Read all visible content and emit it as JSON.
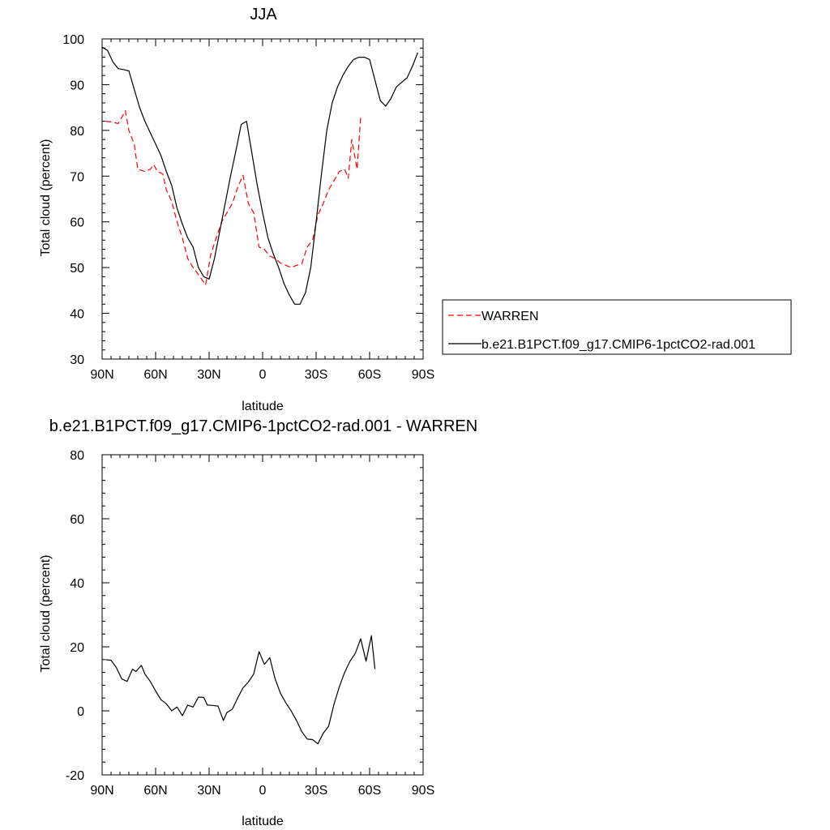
{
  "chart_data": [
    {
      "type": "line",
      "title": "JJA",
      "xlabel": "latitude",
      "ylabel": "Total cloud (percent)",
      "xlim": [
        90,
        -90
      ],
      "ylim": [
        30,
        100
      ],
      "x_ticks": [
        90,
        60,
        30,
        0,
        -30,
        -60,
        -90
      ],
      "x_tick_labels": [
        "90N",
        "60N",
        "30N",
        "0",
        "30S",
        "60S",
        "90S"
      ],
      "y_ticks": [
        30,
        40,
        50,
        60,
        70,
        80,
        90,
        100
      ],
      "y_tick_labels": [
        "30",
        "40",
        "50",
        "60",
        "70",
        "80",
        "90",
        "100"
      ],
      "legend": {
        "placement": "outside-right"
      },
      "series": [
        {
          "name": "WARREN",
          "color": "#ff0000",
          "dash": "dashed",
          "points": [
            [
              88,
              82
            ],
            [
              84,
              81.8
            ],
            [
              81,
              81.5
            ],
            [
              78,
              83.5
            ],
            [
              77,
              84.3
            ],
            [
              75,
              80
            ],
            [
              72,
              77
            ],
            [
              70,
              71.5
            ],
            [
              66,
              71
            ],
            [
              63,
              71.5
            ],
            [
              61,
              72.5
            ],
            [
              59,
              71
            ],
            [
              56,
              70.5
            ],
            [
              54,
              67
            ],
            [
              51,
              64.5
            ],
            [
              48,
              60
            ],
            [
              45,
              56.5
            ],
            [
              42,
              52
            ],
            [
              39,
              50
            ],
            [
              36,
              48.5
            ],
            [
              32,
              46.2
            ],
            [
              29,
              53
            ],
            [
              26,
              56.5
            ],
            [
              23,
              60
            ],
            [
              20,
              62
            ],
            [
              17,
              64
            ],
            [
              14,
              67.5
            ],
            [
              11,
              70.2
            ],
            [
              8,
              64
            ],
            [
              5,
              62
            ],
            [
              2,
              54.5
            ],
            [
              -1,
              54
            ],
            [
              -4,
              52.5
            ],
            [
              -7,
              52
            ],
            [
              -10,
              51
            ],
            [
              -13,
              50.5
            ],
            [
              -16,
              50
            ],
            [
              -19,
              50.5
            ],
            [
              -22,
              50.8
            ],
            [
              -25,
              54.5
            ],
            [
              -28,
              56
            ],
            [
              -31,
              61.5
            ],
            [
              -34,
              64
            ],
            [
              -37,
              67
            ],
            [
              -40,
              69
            ],
            [
              -43,
              71
            ],
            [
              -46,
              71.5
            ],
            [
              -48,
              69.5
            ],
            [
              -50,
              78
            ],
            [
              -53,
              71.5
            ],
            [
              -55,
              83
            ]
          ]
        },
        {
          "name": "b.e21.B1PCT.f09_g17.CMIP6-1pctCO2-rad.001",
          "color": "#000000",
          "dash": "solid",
          "points": [
            [
              90,
              98.2
            ],
            [
              87,
              97.5
            ],
            [
              84,
              95
            ],
            [
              81,
              93.5
            ],
            [
              78,
              93.3
            ],
            [
              75,
              93
            ],
            [
              72,
              89
            ],
            [
              69,
              85
            ],
            [
              66,
              82
            ],
            [
              63,
              79.5
            ],
            [
              60,
              77
            ],
            [
              57,
              74.5
            ],
            [
              54,
              71
            ],
            [
              51,
              68
            ],
            [
              48,
              63
            ],
            [
              45,
              59.5
            ],
            [
              42,
              56.5
            ],
            [
              39,
              54.5
            ],
            [
              36,
              50
            ],
            [
              33,
              48
            ],
            [
              30,
              47.5
            ],
            [
              27,
              52
            ],
            [
              24,
              58
            ],
            [
              21,
              64
            ],
            [
              18,
              70
            ],
            [
              15,
              75.5
            ],
            [
              12,
              81.3
            ],
            [
              9,
              82
            ],
            [
              6,
              75
            ],
            [
              3,
              68
            ],
            [
              0,
              62
            ],
            [
              -3,
              56.5
            ],
            [
              -6,
              53
            ],
            [
              -9,
              50
            ],
            [
              -12,
              46.5
            ],
            [
              -15,
              44
            ],
            [
              -18,
              42
            ],
            [
              -21,
              42
            ],
            [
              -24,
              44.5
            ],
            [
              -27,
              50
            ],
            [
              -30,
              60
            ],
            [
              -33,
              70.5
            ],
            [
              -36,
              80
            ],
            [
              -39,
              86
            ],
            [
              -42,
              89.5
            ],
            [
              -45,
              92
            ],
            [
              -48,
              94
            ],
            [
              -51,
              95.5
            ],
            [
              -54,
              96
            ],
            [
              -57,
              96
            ],
            [
              -60,
              95.5
            ],
            [
              -63,
              91
            ],
            [
              -66,
              86.5
            ],
            [
              -69,
              85.3
            ],
            [
              -72,
              87
            ],
            [
              -75,
              89.5
            ],
            [
              -78,
              90.5
            ],
            [
              -81,
              91.5
            ],
            [
              -84,
              94
            ],
            [
              -87,
              97
            ]
          ]
        }
      ]
    },
    {
      "type": "line",
      "title": "b.e21.B1PCT.f09_g17.CMIP6-1pctCO2-rad.001 - WARREN",
      "xlabel": "latitude",
      "ylabel": "Total cloud (percent)",
      "xlim": [
        90,
        -90
      ],
      "ylim": [
        -20,
        80
      ],
      "x_ticks": [
        90,
        60,
        30,
        0,
        -30,
        -60,
        -90
      ],
      "x_tick_labels": [
        "90N",
        "60N",
        "30N",
        "0",
        "30S",
        "60S",
        "90S"
      ],
      "y_ticks": [
        -20,
        0,
        20,
        40,
        60,
        80
      ],
      "y_tick_labels": [
        "-20",
        "0",
        "20",
        "40",
        "60",
        "80"
      ],
      "series": [
        {
          "color": "#000000",
          "dash": "solid",
          "points": [
            [
              88,
              16
            ],
            [
              85,
              15.8
            ],
            [
              82,
              13.5
            ],
            [
              79,
              10
            ],
            [
              76,
              9.2
            ],
            [
              73,
              13
            ],
            [
              71,
              12.3
            ],
            [
              68,
              14.2
            ],
            [
              66,
              11.5
            ],
            [
              63,
              9.2
            ],
            [
              60,
              6.2
            ],
            [
              57,
              3.5
            ],
            [
              54,
              2.2
            ],
            [
              51,
              0
            ],
            [
              48,
              1.2
            ],
            [
              45,
              -1.5
            ],
            [
              42,
              1.8
            ],
            [
              39,
              1.2
            ],
            [
              36,
              4.3
            ],
            [
              33,
              4.2
            ],
            [
              31,
              1.8
            ],
            [
              28,
              1.7
            ],
            [
              25,
              1.5
            ],
            [
              22,
              -3
            ],
            [
              20,
              -0.5
            ],
            [
              17,
              0.5
            ],
            [
              14,
              4
            ],
            [
              11,
              7.2
            ],
            [
              8,
              9
            ],
            [
              5,
              11.5
            ],
            [
              2,
              18.5
            ],
            [
              -1,
              14.5
            ],
            [
              -4,
              16.6
            ],
            [
              -7,
              10
            ],
            [
              -10,
              5.5
            ],
            [
              -13,
              2.5
            ],
            [
              -16,
              0
            ],
            [
              -19,
              -3
            ],
            [
              -22,
              -6.5
            ],
            [
              -25,
              -8.8
            ],
            [
              -28,
              -9
            ],
            [
              -31,
              -10.3
            ],
            [
              -34,
              -7
            ],
            [
              -37,
              -4.8
            ],
            [
              -40,
              2
            ],
            [
              -43,
              7.5
            ],
            [
              -46,
              12
            ],
            [
              -49,
              15.5
            ],
            [
              -52,
              18
            ],
            [
              -55,
              22.5
            ],
            [
              -58,
              15.5
            ],
            [
              -61,
              23.5
            ],
            [
              -63,
              13
            ]
          ]
        }
      ]
    }
  ]
}
